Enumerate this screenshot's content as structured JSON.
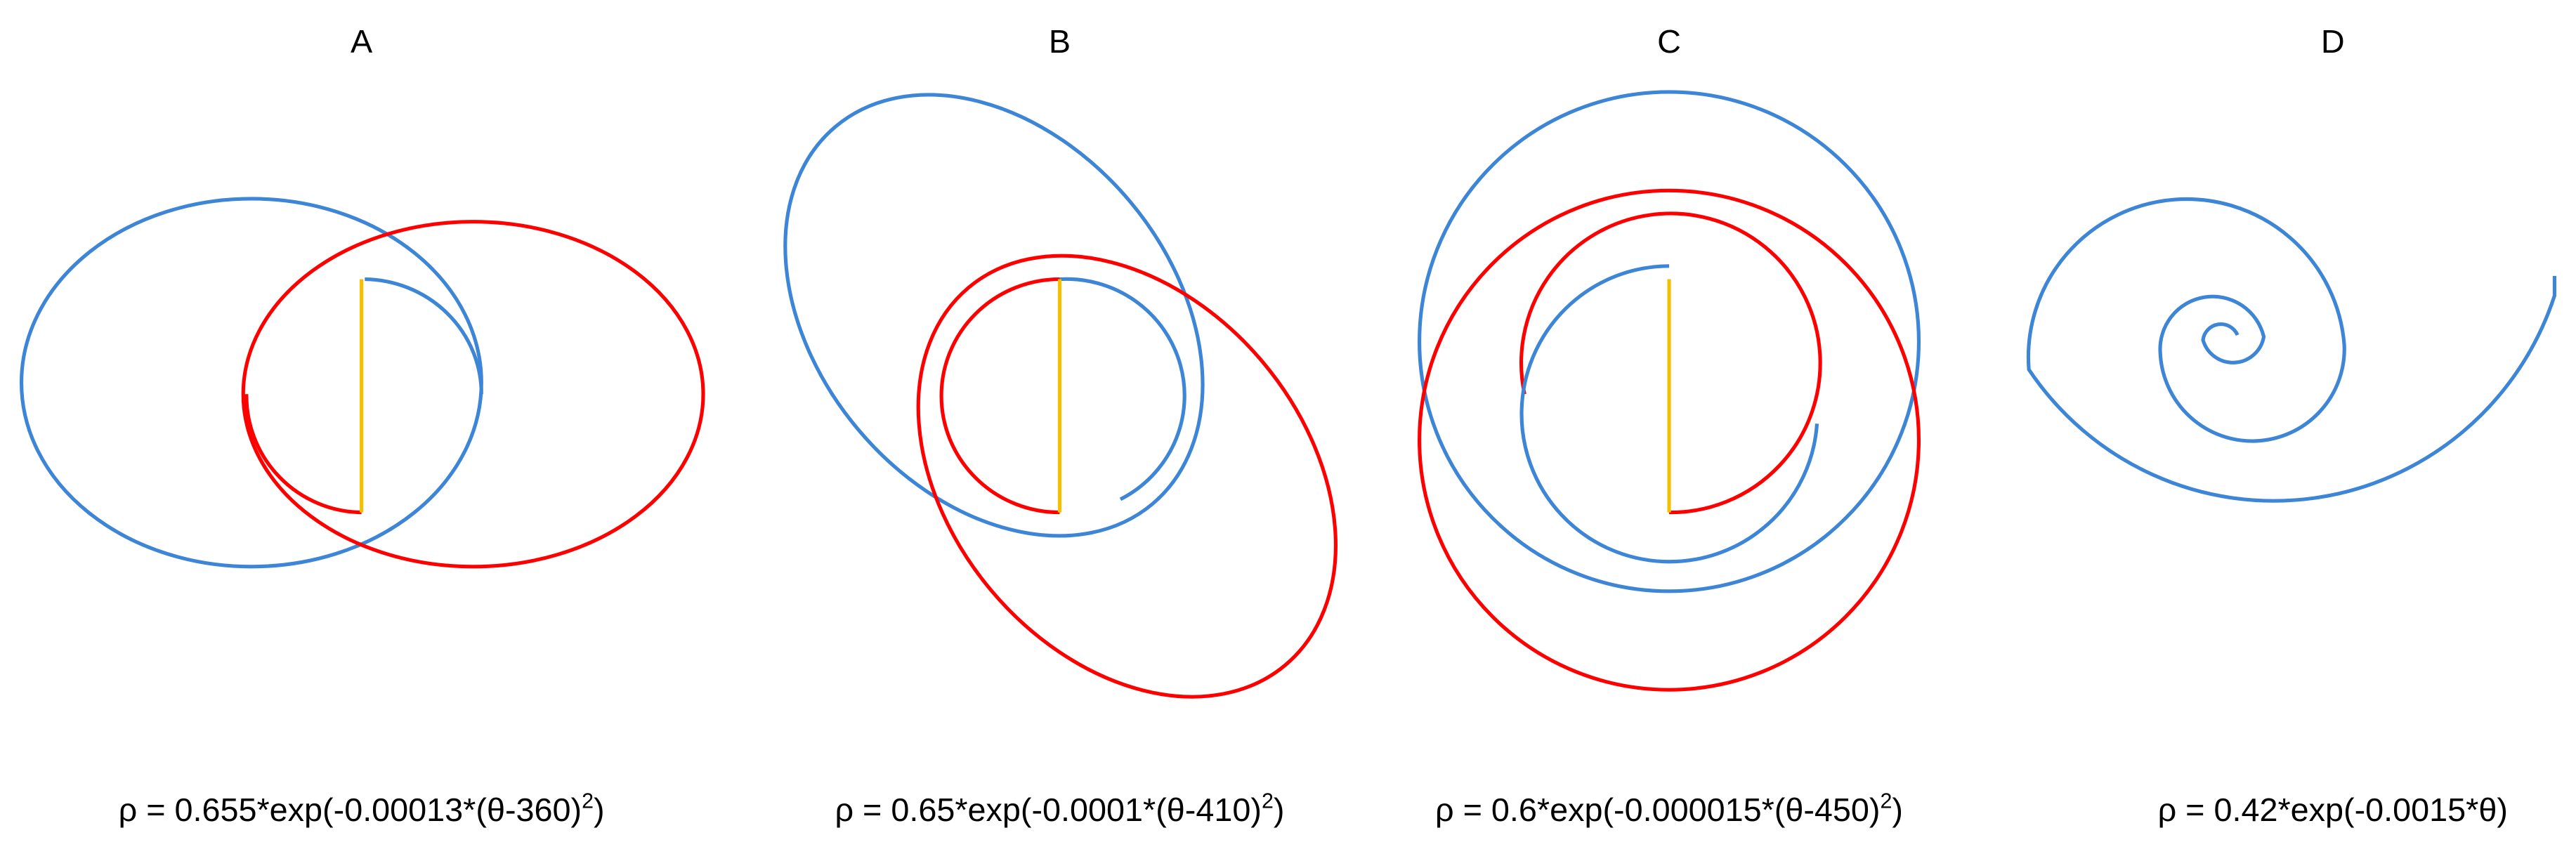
{
  "panels": [
    {
      "label": "A",
      "formula": {
        "main": "ρ = 0.655*exp(-0.00013*(θ-360)",
        "sup": "2",
        "end": ")"
      }
    },
    {
      "label": "B",
      "formula": {
        "main": "ρ = 0.65*exp(-0.0001*(θ-410)",
        "sup": "2",
        "end": ")"
      }
    },
    {
      "label": "C",
      "formula": {
        "main": "ρ = 0.6*exp(-0.000015*(θ-450)",
        "sup": "2",
        "end": ")"
      }
    },
    {
      "label": "D",
      "formula": {
        "main": "ρ = 0.42*exp(-0.0015*θ)"
      }
    }
  ]
}
